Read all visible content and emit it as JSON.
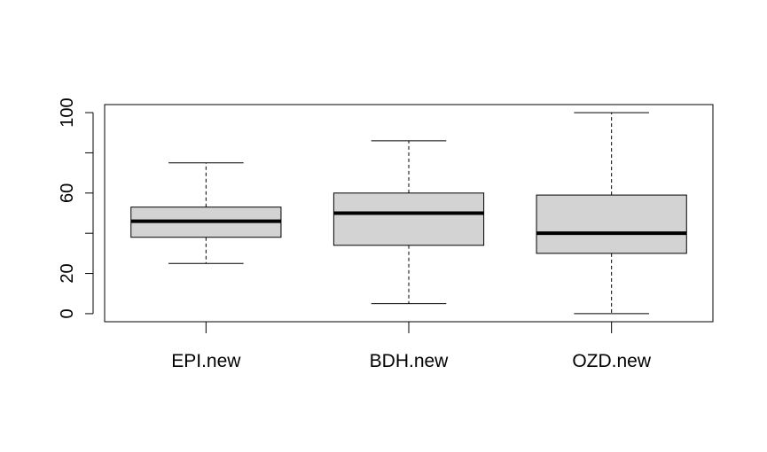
{
  "chart_data": {
    "type": "boxplot",
    "title": "",
    "xlabel": "",
    "ylabel": "",
    "categories": [
      "EPI.new",
      "BDH.new",
      "OZD.new"
    ],
    "boxes": [
      {
        "category": "EPI.new",
        "min": 25,
        "q1": 38,
        "median": 46,
        "q3": 53,
        "max": 75
      },
      {
        "category": "BDH.new",
        "min": 5,
        "q1": 34,
        "median": 50,
        "q3": 60,
        "max": 86
      },
      {
        "category": "OZD.new",
        "min": 0,
        "q1": 30,
        "median": 40,
        "q3": 59,
        "max": 100
      }
    ],
    "ylim": [
      -4,
      104
    ],
    "yticks": [
      0,
      20,
      40,
      60,
      80,
      100
    ],
    "ytick_labels": [
      "0",
      "20",
      "",
      "60",
      "",
      "100"
    ],
    "box_fill": "#d3d3d3",
    "grid": false
  }
}
